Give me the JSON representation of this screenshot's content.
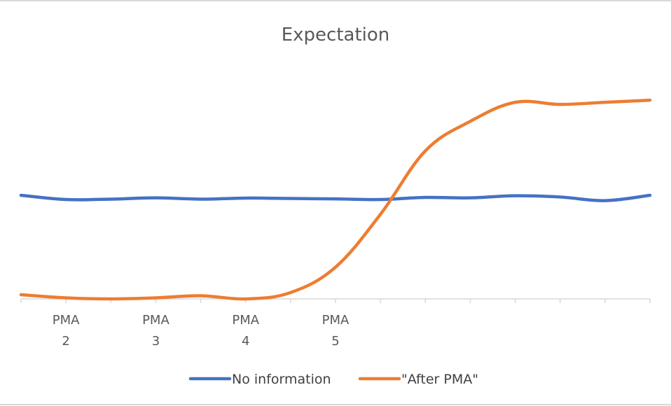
{
  "chart_data": {
    "type": "line",
    "title": "Expectation",
    "xlabel": "",
    "ylabel": "",
    "categories": [
      [
        "",
        ""
      ],
      [
        "PMA",
        "2"
      ],
      [
        "",
        ""
      ],
      [
        "PMA",
        "3"
      ],
      [
        "",
        ""
      ],
      [
        "PMA",
        "4"
      ],
      [
        "",
        ""
      ],
      [
        "PMA",
        "5"
      ],
      [
        "",
        ""
      ],
      [
        "",
        ""
      ],
      [
        "",
        ""
      ],
      [
        "",
        ""
      ],
      [
        "",
        ""
      ],
      [
        "",
        ""
      ],
      [
        "",
        ""
      ]
    ],
    "ylim": [
      0,
      10
    ],
    "grid": false,
    "legend": "bottom",
    "series": [
      {
        "name": "No information",
        "color": "#4472C4",
        "values": [
          4.9,
          4.7,
          4.72,
          4.78,
          4.72,
          4.77,
          4.75,
          4.73,
          4.7,
          4.8,
          4.78,
          4.88,
          4.82,
          4.65,
          4.9
        ]
      },
      {
        "name": "\"After PMA\"",
        "color": "#ED7D31",
        "values": [
          0.2,
          0.05,
          0.0,
          0.05,
          0.15,
          0.0,
          0.3,
          1.5,
          4.0,
          7.0,
          8.4,
          9.3,
          9.2,
          9.3,
          9.4
        ]
      }
    ]
  }
}
